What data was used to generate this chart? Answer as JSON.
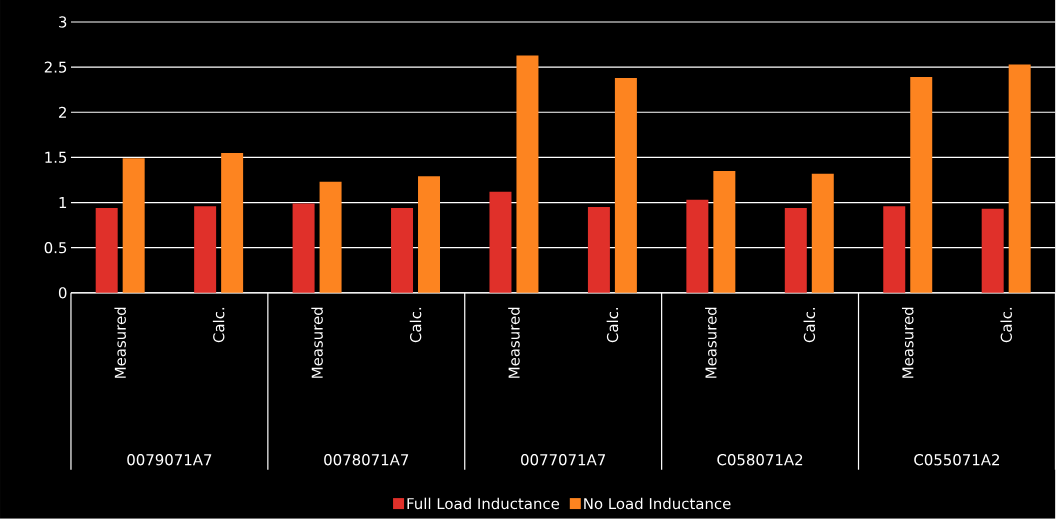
{
  "chart_data": {
    "type": "bar",
    "categories": [
      "Measured",
      "Calc.",
      "Measured",
      "Calc.",
      "Measured",
      "Calc.",
      "Measured",
      "Calc.",
      "Measured",
      "Calc."
    ],
    "series": [
      {
        "name": "Full Load Inductance",
        "color": "#e0302a",
        "values": [
          0.94,
          0.96,
          0.99,
          0.94,
          1.12,
          0.95,
          1.03,
          0.94,
          0.96,
          0.93
        ]
      },
      {
        "name": "No Load Inductance",
        "color": "#fd8420",
        "values": [
          1.49,
          1.55,
          1.23,
          1.29,
          2.63,
          2.38,
          1.35,
          1.32,
          2.39,
          2.53
        ]
      }
    ],
    "annotations": [
      "0079071A7",
      "0078071A7",
      "0077071A7",
      "C058071A2",
      "C055071A2"
    ],
    "ylim": [
      0,
      3
    ],
    "yticks": [
      0,
      0.5,
      1,
      1.5,
      2,
      2.5,
      3
    ],
    "grid": "y",
    "legend": "bottom"
  }
}
